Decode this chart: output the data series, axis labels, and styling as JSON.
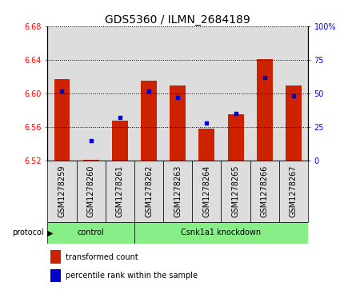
{
  "title": "GDS5360 / ILMN_2684189",
  "samples": [
    "GSM1278259",
    "GSM1278260",
    "GSM1278261",
    "GSM1278262",
    "GSM1278263",
    "GSM1278264",
    "GSM1278265",
    "GSM1278266",
    "GSM1278267"
  ],
  "transformed_count": [
    6.617,
    6.521,
    6.568,
    6.615,
    6.61,
    6.558,
    6.575,
    6.641,
    6.61
  ],
  "percentile_rank": [
    52,
    15,
    32,
    52,
    47,
    28,
    35,
    62,
    48
  ],
  "ylim_left": [
    6.52,
    6.68
  ],
  "ylim_right": [
    0,
    100
  ],
  "yticks_left": [
    6.52,
    6.56,
    6.6,
    6.64,
    6.68
  ],
  "yticks_right": [
    0,
    25,
    50,
    75,
    100
  ],
  "bar_color": "#cc2200",
  "marker_color": "#0000cc",
  "bar_bottom": 6.52,
  "control_samples": [
    0,
    1,
    2
  ],
  "knockdown_samples": [
    3,
    4,
    5,
    6,
    7,
    8
  ],
  "control_label": "control",
  "knockdown_label": "Csnk1a1 knockdown",
  "protocol_label": "protocol",
  "legend_bar_label": "transformed count",
  "legend_marker_label": "percentile rank within the sample",
  "group_bg_color": "#88ee88",
  "sample_bg_color": "#dddddd",
  "title_fontsize": 10,
  "tick_fontsize": 7,
  "legend_fontsize": 7
}
